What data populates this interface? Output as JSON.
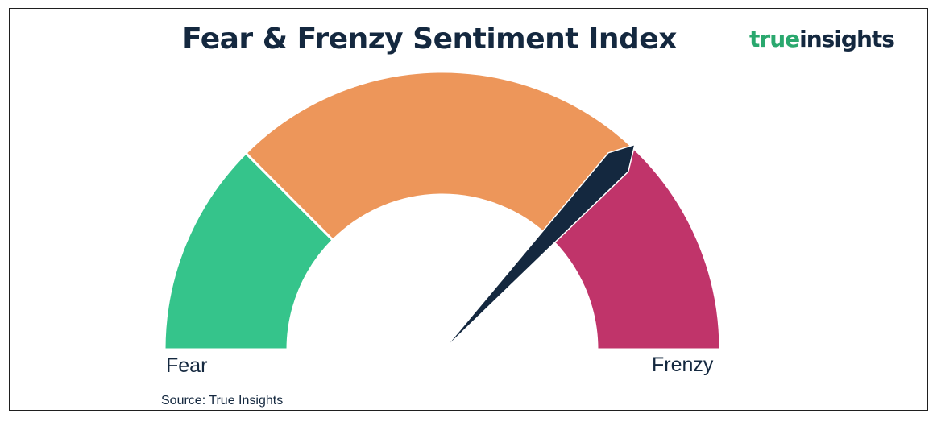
{
  "header": {
    "title": "Fear & Frenzy Sentiment Index"
  },
  "logo": {
    "word1": "true",
    "word2": "insights",
    "word1_color": "#2aa86e",
    "word2_color": "#14283f"
  },
  "chart_data": {
    "type": "gauge",
    "title": "Fear & Frenzy Sentiment Index",
    "min_label": "Fear",
    "max_label": "Frenzy",
    "range": [
      0,
      100
    ],
    "segments": [
      {
        "from": 0,
        "to": 25,
        "color": "#35c48b"
      },
      {
        "from": 25,
        "to": 74,
        "color": "#ed965a"
      },
      {
        "from": 74,
        "to": 100,
        "color": "#c0346a"
      }
    ],
    "needle_value": 74,
    "needle_color": "#14283f"
  },
  "footer": {
    "source": "Source: True Insights"
  }
}
